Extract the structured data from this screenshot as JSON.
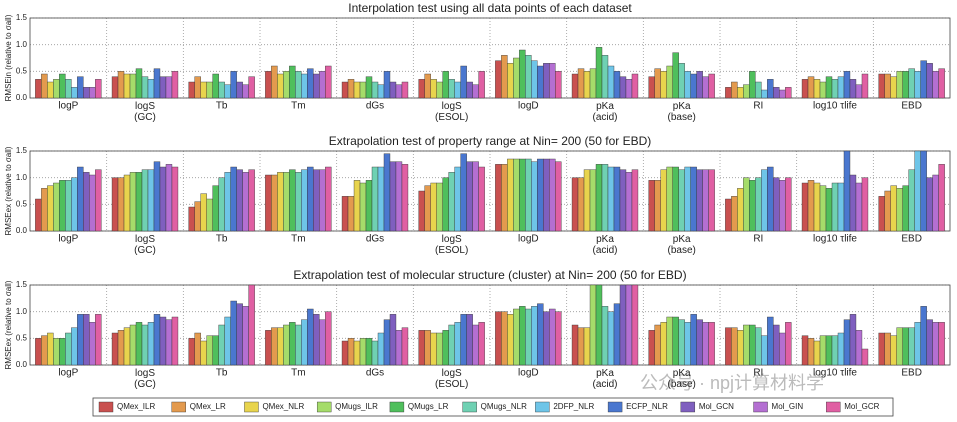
{
  "watermark": "公众号 · npj计算材料学",
  "chart_data": [
    {
      "type": "bar",
      "title": "Interpolation test using all data points of each dataset",
      "ylabel": "RMSEin (relative to σall)",
      "categories": [
        "logP",
        "logS\n(GC)",
        "Tb",
        "Tm",
        "dGs",
        "logS\n(ESOL)",
        "logD",
        "pKa\n(acid)",
        "pKa\n(base)",
        "RI",
        "log10 τlife",
        "EBD"
      ],
      "ylim": [
        0,
        1.5
      ],
      "yticks": [
        {
          "value": 0,
          "label": "0.0"
        },
        {
          "value": 0.5,
          "label": "0.5"
        },
        {
          "value": 1,
          "label": "1.0"
        },
        {
          "value": 1.5,
          "label": "1.5"
        }
      ],
      "grid": true,
      "series": [
        {
          "name": "QMex_ILR",
          "color": "#c9504f",
          "values": [
            0.35,
            0.4,
            0.3,
            0.5,
            0.3,
            0.35,
            0.7,
            0.45,
            0.4,
            0.2,
            0.35,
            0.45
          ]
        },
        {
          "name": "QMex_LR",
          "color": "#e39a4e",
          "values": [
            0.45,
            0.5,
            0.4,
            0.6,
            0.35,
            0.45,
            0.8,
            0.55,
            0.55,
            0.3,
            0.4,
            0.45
          ]
        },
        {
          "name": "QMex_NLR",
          "color": "#e8d44d",
          "values": [
            0.3,
            0.45,
            0.3,
            0.45,
            0.3,
            0.35,
            0.65,
            0.5,
            0.5,
            0.2,
            0.35,
            0.4
          ]
        },
        {
          "name": "QMugs_ILR",
          "color": "#a5dc6a",
          "values": [
            0.35,
            0.45,
            0.3,
            0.5,
            0.3,
            0.3,
            0.75,
            0.55,
            0.6,
            0.25,
            0.3,
            0.5
          ]
        },
        {
          "name": "QMugs_LR",
          "color": "#4fbf5c",
          "values": [
            0.45,
            0.55,
            0.45,
            0.6,
            0.4,
            0.5,
            0.9,
            0.95,
            0.85,
            0.5,
            0.4,
            0.5
          ]
        },
        {
          "name": "QMugs_NLR",
          "color": "#6fd1b3",
          "values": [
            0.35,
            0.4,
            0.3,
            0.5,
            0.3,
            0.35,
            0.8,
            0.8,
            0.65,
            0.3,
            0.35,
            0.55
          ]
        },
        {
          "name": "2DFP_NLR",
          "color": "#6ec5e8",
          "values": [
            0.2,
            0.35,
            0.25,
            0.45,
            0.25,
            0.3,
            0.7,
            0.6,
            0.5,
            0.15,
            0.4,
            0.5
          ]
        },
        {
          "name": "ECFP_NLR",
          "color": "#4a77cf",
          "values": [
            0.4,
            0.55,
            0.5,
            0.55,
            0.5,
            0.6,
            0.6,
            0.5,
            0.45,
            0.35,
            0.5,
            0.7
          ]
        },
        {
          "name": "Mol_GCN",
          "color": "#7f5fbf",
          "values": [
            0.2,
            0.4,
            0.3,
            0.45,
            0.3,
            0.3,
            0.65,
            0.4,
            0.5,
            0.2,
            0.35,
            0.65
          ]
        },
        {
          "name": "Mol_GIN",
          "color": "#b46fd2",
          "values": [
            0.2,
            0.4,
            0.25,
            0.5,
            0.25,
            0.25,
            0.65,
            0.35,
            0.4,
            0.15,
            0.25,
            0.5
          ]
        },
        {
          "name": "Mol_GCR",
          "color": "#e05fa3",
          "values": [
            0.35,
            0.5,
            0.4,
            0.6,
            0.3,
            0.5,
            0.5,
            0.45,
            0.45,
            0.2,
            0.45,
            0.55
          ]
        }
      ]
    },
    {
      "type": "bar",
      "title": "Extrapolation test of property range at Nin= 200 (50 for EBD)",
      "ylabel": "RMSEex (relative to σall)",
      "ylim": [
        0,
        1.5
      ],
      "yticks": [
        {
          "value": 0,
          "label": "0.0"
        },
        {
          "value": 0.5,
          "label": "0.5"
        },
        {
          "value": 1,
          "label": "1.0"
        },
        {
          "value": 1.5,
          "label": "1.5"
        }
      ],
      "grid": true,
      "series": [
        {
          "values": [
            0.6,
            1.0,
            0.45,
            1.05,
            0.65,
            0.75,
            1.25,
            1.0,
            0.95,
            0.6,
            0.9,
            0.65
          ]
        },
        {
          "values": [
            0.8,
            1.0,
            0.55,
            1.05,
            0.65,
            0.85,
            1.25,
            1.0,
            0.95,
            0.65,
            0.95,
            0.75
          ]
        },
        {
          "values": [
            0.85,
            1.05,
            0.7,
            1.1,
            0.95,
            0.9,
            1.35,
            1.15,
            1.15,
            0.8,
            0.9,
            0.85
          ]
        },
        {
          "values": [
            0.9,
            1.1,
            0.6,
            1.1,
            0.9,
            0.9,
            1.35,
            1.15,
            1.2,
            1.0,
            0.85,
            0.8
          ]
        },
        {
          "values": [
            0.95,
            1.1,
            0.85,
            1.15,
            0.95,
            1.0,
            1.35,
            1.25,
            1.2,
            0.95,
            0.8,
            0.85
          ]
        },
        {
          "values": [
            0.95,
            1.15,
            1.0,
            1.1,
            1.2,
            1.1,
            1.35,
            1.25,
            1.15,
            1.0,
            0.9,
            1.15
          ]
        },
        {
          "values": [
            1.0,
            1.15,
            1.1,
            1.15,
            1.2,
            1.2,
            1.3,
            1.2,
            1.2,
            1.15,
            0.9,
            1.5
          ]
        },
        {
          "values": [
            1.2,
            1.3,
            1.2,
            1.2,
            1.45,
            1.45,
            1.35,
            1.2,
            1.2,
            1.2,
            1.5,
            1.5
          ]
        },
        {
          "values": [
            1.1,
            1.2,
            1.15,
            1.15,
            1.3,
            1.3,
            1.35,
            1.15,
            1.15,
            1.0,
            1.05,
            1.0
          ]
        },
        {
          "values": [
            1.05,
            1.25,
            1.1,
            1.15,
            1.3,
            1.3,
            1.35,
            1.1,
            1.15,
            0.95,
            0.9,
            1.05
          ]
        },
        {
          "values": [
            1.15,
            1.2,
            1.15,
            1.2,
            1.25,
            1.2,
            1.3,
            1.15,
            1.15,
            1.0,
            1.0,
            1.25
          ]
        }
      ]
    },
    {
      "type": "bar",
      "title": "Extrapolation test of molecular structure (cluster) at Nin= 200 (50 for EBD)",
      "ylabel": "RMSEex (relative to σall)",
      "ylim": [
        0,
        1.5
      ],
      "yticks": [
        {
          "value": 0,
          "label": "0.0"
        },
        {
          "value": 0.5,
          "label": "0.5"
        },
        {
          "value": 1,
          "label": "1.0"
        },
        {
          "value": 1.5,
          "label": "1.5"
        }
      ],
      "grid": true,
      "series": [
        {
          "values": [
            0.5,
            0.6,
            0.5,
            0.65,
            0.45,
            0.65,
            1.0,
            0.75,
            0.65,
            0.7,
            0.55,
            0.6
          ]
        },
        {
          "values": [
            0.55,
            0.65,
            0.6,
            0.7,
            0.5,
            0.65,
            1.0,
            0.7,
            0.75,
            0.7,
            0.5,
            0.6
          ]
        },
        {
          "values": [
            0.6,
            0.7,
            0.45,
            0.7,
            0.45,
            0.6,
            0.95,
            0.7,
            0.8,
            0.65,
            0.45,
            0.55
          ]
        },
        {
          "values": [
            0.5,
            0.75,
            0.55,
            0.75,
            0.5,
            0.6,
            1.05,
            1.5,
            0.9,
            0.75,
            0.55,
            0.7
          ]
        },
        {
          "values": [
            0.5,
            0.8,
            0.55,
            0.8,
            0.5,
            0.65,
            1.1,
            1.5,
            0.9,
            0.75,
            0.55,
            0.7
          ]
        },
        {
          "values": [
            0.6,
            0.75,
            0.75,
            0.75,
            0.45,
            0.75,
            1.05,
            1.1,
            0.85,
            0.7,
            0.55,
            0.7
          ]
        },
        {
          "values": [
            0.7,
            0.8,
            0.9,
            0.85,
            0.6,
            0.8,
            1.1,
            1.0,
            0.8,
            0.55,
            0.6,
            0.8
          ]
        },
        {
          "values": [
            0.95,
            0.95,
            1.2,
            1.05,
            0.85,
            0.95,
            1.15,
            1.15,
            0.95,
            0.9,
            0.85,
            1.1
          ]
        },
        {
          "values": [
            0.95,
            0.9,
            1.15,
            0.95,
            0.95,
            0.95,
            1.0,
            1.5,
            0.85,
            0.75,
            0.95,
            0.85
          ]
        },
        {
          "values": [
            0.8,
            0.85,
            1.1,
            0.85,
            0.65,
            0.75,
            1.05,
            1.5,
            0.8,
            0.6,
            0.65,
            0.8
          ]
        },
        {
          "values": [
            0.95,
            0.9,
            1.5,
            1.0,
            0.7,
            0.8,
            1.0,
            1.5,
            0.8,
            0.8,
            0.3,
            0.8
          ]
        }
      ]
    }
  ]
}
